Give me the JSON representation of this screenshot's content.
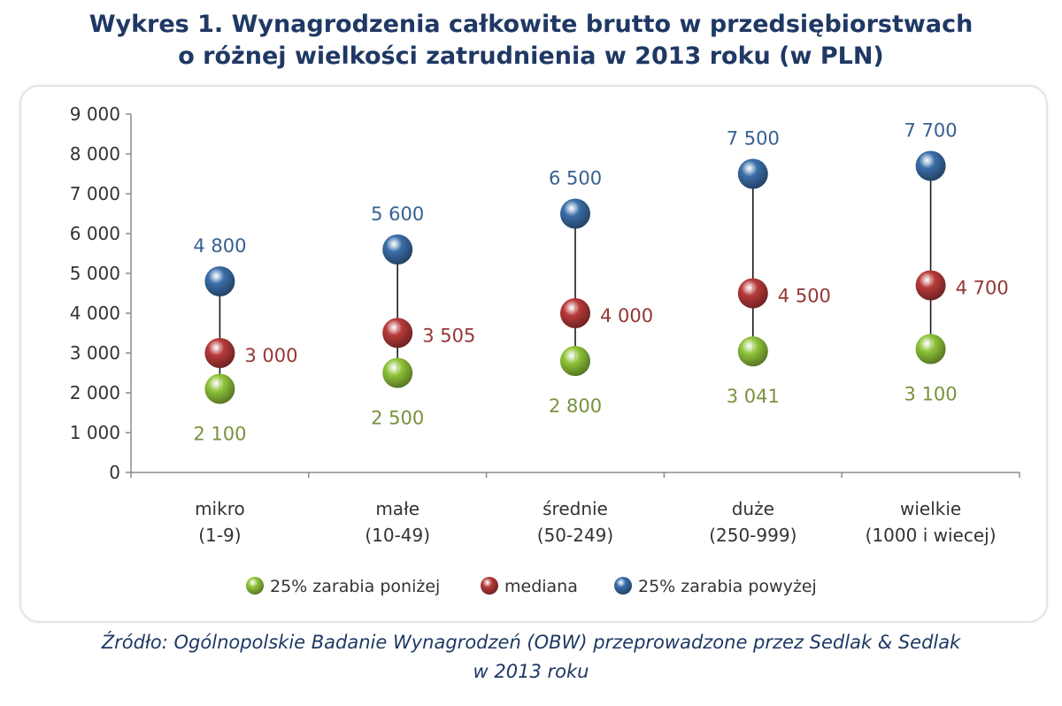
{
  "title_lines": [
    "Wykres 1. Wynagrodzenia całkowite brutto w przedsiębiorstwach",
    "o różnej wielkości zatrudnienia w 2013 roku (w PLN)"
  ],
  "source_lines": [
    "Źródło: Ogólnopolskie Badanie Wynagrodzeń (OBW) przeprowadzone przez Sedlak & Sedlak",
    "w 2013 roku"
  ],
  "colors": {
    "low": "#8fc43a",
    "median": "#b83a3a",
    "high": "#3a6ea8",
    "low_label": "#77933c",
    "median_label": "#953735",
    "high_label": "#376092"
  },
  "chart_data": {
    "type": "scatter",
    "subtype": "high-low-close",
    "title": "Wykres 1. Wynagrodzenia całkowite brutto w przedsiębiorstwach o różnej wielkości zatrudnienia w 2013 roku (w PLN)",
    "categories": [
      [
        "mikro",
        "(1-9)"
      ],
      [
        "małe",
        "(10-49)"
      ],
      [
        "średnie",
        "(50-249)"
      ],
      [
        "duże",
        "(250-999)"
      ],
      [
        "wielkie",
        "(1000 i wiecej)"
      ]
    ],
    "series": [
      {
        "name": "25% zarabia poniżej",
        "values": [
          2100,
          2500,
          2800,
          3041,
          3100
        ],
        "labels": [
          "2 100",
          "2 500",
          "2 800",
          "3 041",
          "3 100"
        ]
      },
      {
        "name": "mediana",
        "values": [
          3000,
          3505,
          4000,
          4500,
          4700
        ],
        "labels": [
          "3 000",
          "3 505",
          "4 000",
          "4 500",
          "4 700"
        ]
      },
      {
        "name": "25% zarabia powyżej",
        "values": [
          4800,
          5600,
          6500,
          7500,
          7700
        ],
        "labels": [
          "4 800",
          "5 600",
          "6 500",
          "7 500",
          "7 700"
        ]
      }
    ],
    "ylim": [
      0,
      9000
    ],
    "yticks": [
      0,
      1000,
      2000,
      3000,
      4000,
      5000,
      6000,
      7000,
      8000,
      9000
    ],
    "ytick_labels": [
      "0",
      "1 000",
      "2 000",
      "3 000",
      "4 000",
      "5 000",
      "6 000",
      "7 000",
      "8 000",
      "9 000"
    ],
    "xlabel": "",
    "ylabel": "",
    "grid": false,
    "legend": "bottom"
  }
}
